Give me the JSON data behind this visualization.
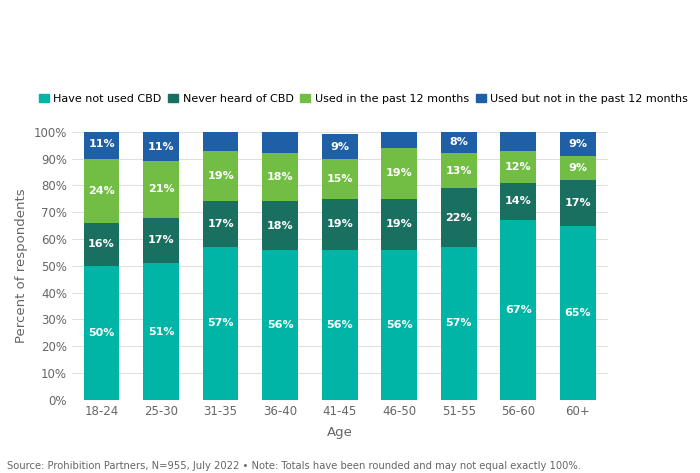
{
  "categories": [
    "18-24",
    "25-30",
    "31-35",
    "36-40",
    "41-45",
    "46-50",
    "51-55",
    "56-60",
    "60+"
  ],
  "series": {
    "Have not used CBD": [
      50,
      51,
      57,
      56,
      56,
      56,
      57,
      67,
      65
    ],
    "Never heard of CBD": [
      16,
      17,
      17,
      18,
      19,
      19,
      22,
      14,
      17
    ],
    "Used in the past 12 months": [
      24,
      21,
      19,
      18,
      15,
      19,
      13,
      12,
      9
    ],
    "Used but not in the past 12 months": [
      11,
      11,
      7,
      8,
      9,
      6,
      8,
      7,
      9
    ]
  },
  "labels": {
    "Have not used CBD": [
      "50%",
      "51%",
      "57%",
      "56%",
      "56%",
      "56%",
      "57%",
      "67%",
      "65%"
    ],
    "Never heard of CBD": [
      "16%",
      "17%",
      "17%",
      "18%",
      "19%",
      "19%",
      "22%",
      "14%",
      "17%"
    ],
    "Used in the past 12 months": [
      "24%",
      "21%",
      "19%",
      "18%",
      "15%",
      "19%",
      "13%",
      "12%",
      "9%"
    ],
    "Used but not in the past 12 months": [
      "11%",
      "11%",
      "",
      "",
      "9%",
      "",
      "8%",
      "",
      "9%"
    ]
  },
  "colors": {
    "Have not used CBD": "#00B4A6",
    "Never heard of CBD": "#1A7060",
    "Used in the past 12 months": "#72BE44",
    "Used but not in the past 12 months": "#1F5FA6"
  },
  "ylabel": "Percent of respondents",
  "xlabel": "Age",
  "yticks": [
    0,
    10,
    20,
    30,
    40,
    50,
    60,
    70,
    80,
    90,
    100
  ],
  "ytick_labels": [
    "0%",
    "10%",
    "20%",
    "30%",
    "40%",
    "50%",
    "60%",
    "70%",
    "80%",
    "90%",
    "100%"
  ],
  "footnote": "Source: Prohibition Partners, N=955, July 2022 • Note: Totals have been rounded and may not equal exactly 100%.",
  "background_color": "#FFFFFF",
  "grid_color": "#E0E0E0",
  "label_fontsize": 8,
  "axis_label_fontsize": 9.5,
  "tick_fontsize": 8.5,
  "legend_fontsize": 8
}
